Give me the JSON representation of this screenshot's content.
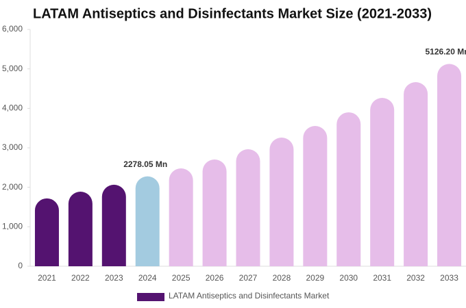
{
  "chart_data": {
    "type": "bar",
    "title": "LATAM Antiseptics and Disinfectants Market Size (2021-2033)",
    "categories": [
      "2021",
      "2022",
      "2023",
      "2024",
      "2025",
      "2026",
      "2027",
      "2028",
      "2029",
      "2030",
      "2031",
      "2032",
      "2033"
    ],
    "series": [
      {
        "name": "LATAM Antiseptics and Disinfectants Market",
        "color": "#541370",
        "values": [
          1720,
          1890,
          2065,
          2278.05,
          2480,
          2705,
          2965,
          3260,
          3555,
          3900,
          4265,
          4665,
          5126.2
        ],
        "colors": [
          "#541370",
          "#541370",
          "#541370",
          "#a3cbe0",
          "#e6bde9",
          "#e6bde9",
          "#e6bde9",
          "#e6bde9",
          "#e6bde9",
          "#e6bde9",
          "#e6bde9",
          "#e6bde9",
          "#e6bde9"
        ],
        "value_labels": [
          null,
          null,
          null,
          "2278.05 Mn",
          null,
          null,
          null,
          null,
          null,
          null,
          null,
          null,
          "5126.20 Mn"
        ]
      }
    ],
    "ylim": [
      0,
      6000
    ],
    "yticks": [
      0,
      {
        "value": 1000,
        "label": "1,000"
      },
      {
        "value": 2000,
        "label": "2,000"
      },
      {
        "value": 3000,
        "label": "3,000"
      },
      {
        "value": 4000,
        "label": "4,000"
      },
      {
        "value": 5000,
        "label": "5,000"
      },
      {
        "value": 6000,
        "label": "6,000"
      }
    ]
  }
}
